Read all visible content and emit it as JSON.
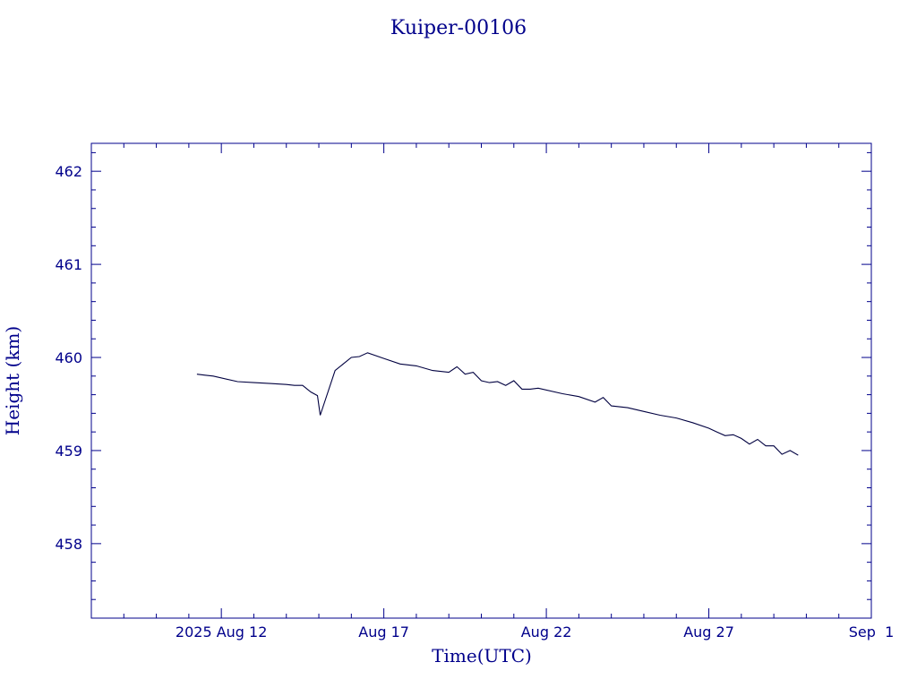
{
  "chart_data": {
    "type": "line",
    "title": "Kuiper-00106",
    "xlabel": "Time(UTC)",
    "ylabel": "Height (km)",
    "xlim": [
      "2025-08-08",
      "2025-09-01"
    ],
    "ylim": [
      457.2,
      462.3
    ],
    "yticks": [
      458,
      459,
      460,
      461,
      462
    ],
    "xticks": [
      {
        "date": "2025-08-12",
        "label": "2025 Aug 12"
      },
      {
        "date": "2025-08-17",
        "label": "Aug 17"
      },
      {
        "date": "2025-08-22",
        "label": "Aug 22"
      },
      {
        "date": "2025-08-27",
        "label": "Aug 27"
      },
      {
        "date": "2025-09-01",
        "label": "Sep  1"
      }
    ],
    "grid": false,
    "colors": {
      "axes": "#00008b",
      "line": "#000040",
      "text": "#00008b"
    },
    "series": [
      {
        "x": [
          "2025-08-11 06:00",
          "2025-08-11 12:00",
          "2025-08-11 18:00",
          "2025-08-12 12:00",
          "2025-08-13 00:00",
          "2025-08-13 12:00",
          "2025-08-14 00:00",
          "2025-08-14 06:00",
          "2025-08-14 12:00",
          "2025-08-14 18:00",
          "2025-08-14 23:00",
          "2025-08-15 01:00",
          "2025-08-15 12:00",
          "2025-08-16 00:00",
          "2025-08-16 06:00",
          "2025-08-16 12:00",
          "2025-08-17 00:00",
          "2025-08-17 12:00",
          "2025-08-18 00:00",
          "2025-08-18 12:00",
          "2025-08-18 18:00",
          "2025-08-19 00:00",
          "2025-08-19 06:00",
          "2025-08-19 12:00",
          "2025-08-19 18:00",
          "2025-08-20 00:00",
          "2025-08-20 06:00",
          "2025-08-20 12:00",
          "2025-08-20 18:00",
          "2025-08-21 00:00",
          "2025-08-21 06:00",
          "2025-08-21 12:00",
          "2025-08-21 18:00",
          "2025-08-22 12:00",
          "2025-08-23 00:00",
          "2025-08-23 12:00",
          "2025-08-23 18:00",
          "2025-08-24 00:00",
          "2025-08-24 12:00",
          "2025-08-25 00:00",
          "2025-08-25 12:00",
          "2025-08-26 00:00",
          "2025-08-26 12:00",
          "2025-08-27 00:00",
          "2025-08-27 06:00",
          "2025-08-27 12:00",
          "2025-08-27 18:00",
          "2025-08-28 00:00",
          "2025-08-28 06:00",
          "2025-08-28 12:00",
          "2025-08-28 18:00",
          "2025-08-29 00:00",
          "2025-08-29 06:00",
          "2025-08-29 12:00",
          "2025-08-29 18:00"
        ],
        "values": [
          459.82,
          459.81,
          459.8,
          459.74,
          459.73,
          459.72,
          459.71,
          459.7,
          459.7,
          459.63,
          459.59,
          459.38,
          459.86,
          460.0,
          460.01,
          460.05,
          459.99,
          459.93,
          459.91,
          459.86,
          459.85,
          459.84,
          459.9,
          459.82,
          459.84,
          459.75,
          459.73,
          459.74,
          459.7,
          459.75,
          459.66,
          459.66,
          459.67,
          459.61,
          459.58,
          459.52,
          459.57,
          459.48,
          459.46,
          459.42,
          459.38,
          459.35,
          459.3,
          459.24,
          459.2,
          459.16,
          459.17,
          459.13,
          459.07,
          459.12,
          459.05,
          459.05,
          458.96,
          459.0,
          458.95
        ]
      }
    ]
  }
}
